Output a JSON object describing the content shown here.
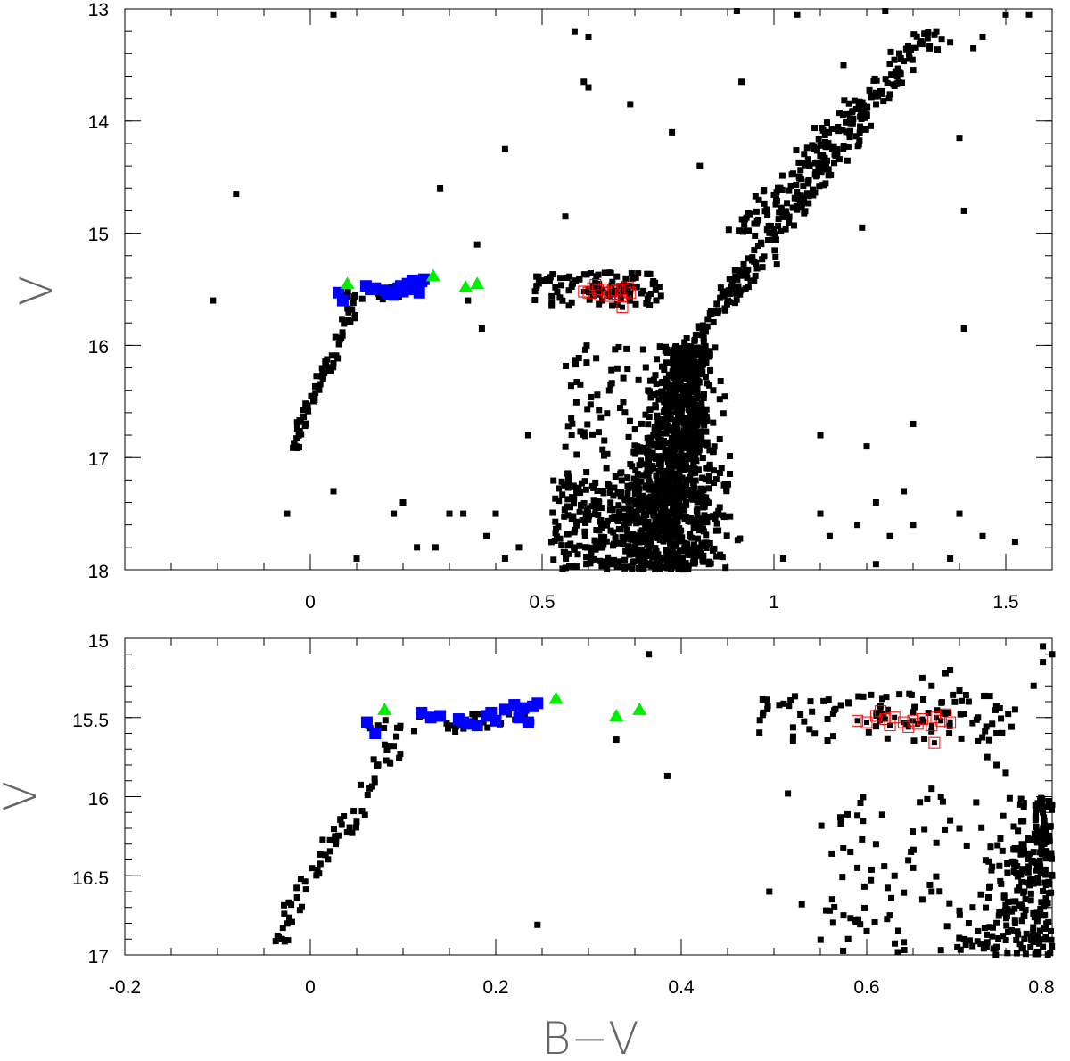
{
  "chart_data": [
    {
      "type": "scatter",
      "panel": "top",
      "xlabel": "",
      "ylabel": "V",
      "xlim": [
        -0.4,
        1.6
      ],
      "ylim": [
        18,
        13
      ],
      "y_inverted": true,
      "xticks": [
        0,
        0.5,
        1,
        1.5
      ],
      "xtick_labels": [
        "0",
        "0.5",
        "1",
        "1.5"
      ],
      "yticks": [
        13,
        14,
        15,
        16,
        17,
        18
      ],
      "ytick_labels": [
        "13",
        "14",
        "15",
        "16",
        "17",
        "18"
      ],
      "grid": false,
      "series": [
        {
          "marker": "filled-square",
          "color": "#000000",
          "generated": "field",
          "points": [
            [
              0.05,
              13.05
            ],
            [
              0.57,
              13.2
            ],
            [
              0.6,
              13.25
            ],
            [
              0.92,
              13.02
            ],
            [
              1.05,
              13.05
            ],
            [
              1.24,
              13.02
            ],
            [
              1.5,
              13.05
            ],
            [
              1.55,
              13.05
            ],
            [
              1.38,
              13.3
            ],
            [
              1.35,
              13.2
            ],
            [
              1.43,
              13.35
            ],
            [
              1.45,
              13.25
            ],
            [
              0.59,
              13.65
            ],
            [
              0.6,
              13.7
            ],
            [
              0.69,
              13.85
            ],
            [
              0.93,
              13.65
            ],
            [
              1.15,
              13.5
            ],
            [
              0.42,
              14.25
            ],
            [
              0.78,
              14.1
            ],
            [
              0.84,
              14.4
            ],
            [
              0.6,
              15.5
            ],
            [
              0.28,
              14.6
            ],
            [
              -0.16,
              14.65
            ],
            [
              0.55,
              14.85
            ],
            [
              0.63,
              15.6
            ],
            [
              1.19,
              14.95
            ],
            [
              1.41,
              14.8
            ],
            [
              1.4,
              14.15
            ],
            [
              0.34,
              15.6
            ],
            [
              0.37,
              15.85
            ],
            [
              0.36,
              15.1
            ],
            [
              1.41,
              15.85
            ],
            [
              -0.21,
              15.6
            ],
            [
              0.47,
              16.8
            ],
            [
              -0.05,
              17.5
            ],
            [
              0.05,
              17.3
            ],
            [
              0.1,
              17.9
            ],
            [
              0.18,
              17.5
            ],
            [
              0.2,
              17.4
            ],
            [
              0.23,
              17.8
            ],
            [
              0.27,
              17.8
            ],
            [
              0.3,
              17.5
            ],
            [
              0.33,
              17.5
            ],
            [
              0.38,
              17.7
            ],
            [
              0.4,
              17.5
            ],
            [
              0.42,
              17.9
            ],
            [
              0.45,
              17.8
            ],
            [
              1.1,
              17.5
            ],
            [
              1.12,
              17.7
            ],
            [
              1.18,
              17.6
            ],
            [
              1.25,
              17.7
            ],
            [
              1.3,
              17.6
            ],
            [
              1.4,
              17.5
            ],
            [
              1.45,
              17.7
            ],
            [
              1.52,
              17.75
            ],
            [
              1.38,
              17.9
            ],
            [
              1.22,
              17.95
            ],
            [
              1.02,
              17.9
            ],
            [
              1.3,
              16.7
            ],
            [
              1.22,
              17.4
            ],
            [
              1.1,
              16.8
            ],
            [
              1.2,
              16.9
            ],
            [
              1.28,
              17.3
            ]
          ]
        },
        {
          "name": "",
          "marker": "large-filled-square",
          "color": "#0000ff",
          "points": [
            [
              0.061,
              15.53
            ],
            [
              0.07,
              15.6
            ],
            [
              0.12,
              15.47
            ],
            [
              0.13,
              15.5
            ],
            [
              0.14,
              15.49
            ],
            [
              0.16,
              15.51
            ],
            [
              0.165,
              15.53
            ],
            [
              0.17,
              15.54
            ],
            [
              0.18,
              15.55
            ],
            [
              0.19,
              15.49
            ],
            [
              0.195,
              15.47
            ],
            [
              0.2,
              15.52
            ],
            [
              0.21,
              15.45
            ],
            [
              0.22,
              15.42
            ],
            [
              0.225,
              15.5
            ],
            [
              0.23,
              15.44
            ],
            [
              0.235,
              15.53
            ],
            [
              0.24,
              15.43
            ],
            [
              0.245,
              15.41
            ]
          ]
        },
        {
          "name": "",
          "marker": "filled-triangle",
          "color": "#00ee00",
          "points": [
            [
              0.08,
              15.45
            ],
            [
              0.265,
              15.38
            ],
            [
              0.335,
              15.48
            ],
            [
              0.36,
              15.45
            ]
          ]
        },
        {
          "name": "",
          "marker": "open-square",
          "color": "#ff0000",
          "points": [
            [
              0.59,
              15.52
            ],
            [
              0.6,
              15.53
            ],
            [
              0.61,
              15.49
            ],
            [
              0.615,
              15.46
            ],
            [
              0.62,
              15.51
            ],
            [
              0.625,
              15.55
            ],
            [
              0.63,
              15.5
            ],
            [
              0.64,
              15.53
            ],
            [
              0.645,
              15.56
            ],
            [
              0.65,
              15.52
            ],
            [
              0.655,
              15.54
            ],
            [
              0.66,
              15.51
            ],
            [
              0.67,
              15.55
            ],
            [
              0.675,
              15.5
            ],
            [
              0.68,
              15.52
            ],
            [
              0.685,
              15.48
            ],
            [
              0.69,
              15.53
            ],
            [
              0.673,
              15.66
            ]
          ]
        }
      ]
    },
    {
      "type": "scatter",
      "panel": "bottom",
      "xlabel": "B−V",
      "ylabel": "V",
      "xlim": [
        -0.2,
        0.8
      ],
      "ylim": [
        17,
        15
      ],
      "y_inverted": true,
      "xticks": [
        -0.2,
        0,
        0.2,
        0.4,
        0.6,
        0.8
      ],
      "xtick_labels": [
        "-0.2",
        "0",
        "0.2",
        "0.4",
        "0.6",
        "0.8"
      ],
      "yticks": [
        15,
        15.5,
        16,
        16.5,
        17
      ],
      "ytick_labels": [
        "15",
        "15.5",
        "16",
        "16.5",
        "17"
      ],
      "grid": false,
      "series": [
        {
          "marker": "filled-square",
          "color": "#000000",
          "generated": "field",
          "points": [
            [
              0.365,
              15.1
            ],
            [
              0.385,
              15.87
            ],
            [
              0.33,
              15.64
            ],
            [
              0.245,
              16.81
            ],
            [
              0.495,
              16.6
            ],
            [
              0.515,
              15.98
            ],
            [
              0.53,
              16.68
            ],
            [
              0.56,
              16.72
            ],
            [
              0.575,
              16.75
            ],
            [
              0.58,
              16.9
            ],
            [
              0.6,
              16.85
            ],
            [
              0.625,
              16.75
            ],
            [
              0.66,
              16.65
            ],
            [
              0.7,
              16.72
            ],
            [
              0.72,
              16.85
            ],
            [
              0.74,
              16.95
            ],
            [
              0.76,
              16.8
            ],
            [
              0.78,
              16.88
            ],
            [
              0.79,
              16.95
            ],
            [
              0.75,
              16.7
            ],
            [
              0.77,
              16.6
            ],
            [
              0.8,
              16.5
            ],
            [
              0.78,
              16.35
            ],
            [
              0.79,
              16.2
            ],
            [
              0.8,
              16.05
            ],
            [
              0.77,
              16.9
            ],
            [
              0.73,
              16.92
            ],
            [
              0.71,
              16.8
            ],
            [
              0.68,
              16.97
            ],
            [
              0.64,
              16.92
            ],
            [
              0.76,
              15.45
            ],
            [
              0.78,
              15.3
            ],
            [
              0.79,
              15.15
            ],
            [
              0.79,
              15.05
            ],
            [
              0.8,
              15.1
            ],
            [
              0.69,
              15.2
            ],
            [
              0.71,
              15.4
            ],
            [
              0.72,
              15.5
            ],
            [
              0.74,
              15.6
            ],
            [
              0.67,
              15.3
            ],
            [
              0.66,
              15.25
            ],
            [
              0.7,
              15.33
            ],
            [
              0.685,
              15.22
            ],
            [
              0.72,
              15.65
            ],
            [
              0.73,
              15.75
            ],
            [
              0.74,
              15.8
            ],
            [
              0.75,
              15.85
            ],
            [
              0.67,
              15.95
            ],
            [
              0.68,
              16.0
            ],
            [
              0.69,
              16.15
            ],
            [
              0.7,
              16.2
            ],
            [
              0.61,
              16.3
            ],
            [
              0.63,
              16.5
            ],
            [
              0.65,
              16.45
            ],
            [
              0.67,
              16.6
            ],
            [
              0.59,
              16.12
            ],
            [
              0.595,
              16.27
            ],
            [
              0.59,
              16.45
            ]
          ]
        },
        {
          "name": "",
          "marker": "large-filled-square",
          "color": "#0000ff",
          "points": [
            [
              0.061,
              15.53
            ],
            [
              0.07,
              15.6
            ],
            [
              0.12,
              15.47
            ],
            [
              0.13,
              15.5
            ],
            [
              0.14,
              15.49
            ],
            [
              0.16,
              15.51
            ],
            [
              0.165,
              15.53
            ],
            [
              0.17,
              15.54
            ],
            [
              0.18,
              15.55
            ],
            [
              0.19,
              15.49
            ],
            [
              0.195,
              15.47
            ],
            [
              0.2,
              15.52
            ],
            [
              0.21,
              15.45
            ],
            [
              0.22,
              15.42
            ],
            [
              0.225,
              15.5
            ],
            [
              0.23,
              15.44
            ],
            [
              0.235,
              15.53
            ],
            [
              0.24,
              15.43
            ],
            [
              0.245,
              15.41
            ]
          ]
        },
        {
          "name": "",
          "marker": "filled-triangle",
          "color": "#00ee00",
          "points": [
            [
              0.08,
              15.45
            ],
            [
              0.265,
              15.38
            ],
            [
              0.33,
              15.49
            ],
            [
              0.355,
              15.45
            ]
          ]
        },
        {
          "name": "",
          "marker": "open-square",
          "color": "#ff0000",
          "points": [
            [
              0.59,
              15.52
            ],
            [
              0.6,
              15.53
            ],
            [
              0.61,
              15.49
            ],
            [
              0.615,
              15.46
            ],
            [
              0.62,
              15.51
            ],
            [
              0.625,
              15.55
            ],
            [
              0.63,
              15.5
            ],
            [
              0.64,
              15.53
            ],
            [
              0.645,
              15.56
            ],
            [
              0.65,
              15.52
            ],
            [
              0.655,
              15.54
            ],
            [
              0.66,
              15.51
            ],
            [
              0.67,
              15.55
            ],
            [
              0.675,
              15.5
            ],
            [
              0.68,
              15.52
            ],
            [
              0.685,
              15.48
            ],
            [
              0.69,
              15.53
            ],
            [
              0.673,
              15.66
            ]
          ]
        }
      ]
    }
  ]
}
